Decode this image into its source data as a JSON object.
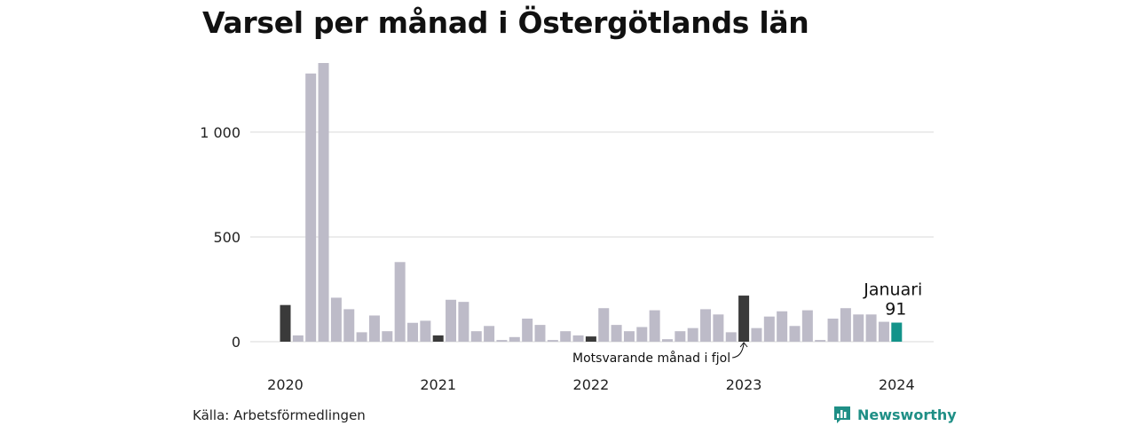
{
  "title": "Varsel per månad i Östergötlands län",
  "source": "Källa: Arbetsförmedlingen",
  "brand": {
    "name": "Newsworthy",
    "icon": "bar-chart-logo-icon"
  },
  "colors": {
    "bar": "#bdbbc8",
    "same_month_last_year": "#3a3a3a",
    "current": "#13938a",
    "grid": "#d9d9d9",
    "brand": "#1f8f86"
  },
  "annotations": {
    "current_label": "Januari",
    "current_value": "91",
    "same_month_label": "Motsvarande månad i fjol"
  },
  "chart_data": {
    "type": "bar",
    "title": "Varsel per månad i Östergötlands län",
    "xlabel": "",
    "ylabel": "",
    "ylim": [
      0,
      1330
    ],
    "yticks": [
      0,
      500,
      1000
    ],
    "ytick_labels": [
      "0",
      "500",
      "1 000"
    ],
    "xtick_labels": [
      "2020",
      "2021",
      "2022",
      "2023",
      "2024"
    ],
    "xtick_indices": [
      0,
      12,
      24,
      36,
      48
    ],
    "grid": true,
    "highlight_indices": [
      0,
      12,
      24,
      36
    ],
    "current_index": 48,
    "values": [
      175,
      30,
      1280,
      1330,
      210,
      155,
      45,
      125,
      50,
      380,
      90,
      100,
      30,
      200,
      190,
      50,
      75,
      8,
      22,
      110,
      80,
      8,
      50,
      30,
      25,
      160,
      80,
      50,
      70,
      150,
      12,
      50,
      65,
      155,
      130,
      45,
      220,
      65,
      120,
      145,
      75,
      150,
      8,
      110,
      160,
      130,
      130,
      95,
      91
    ]
  }
}
